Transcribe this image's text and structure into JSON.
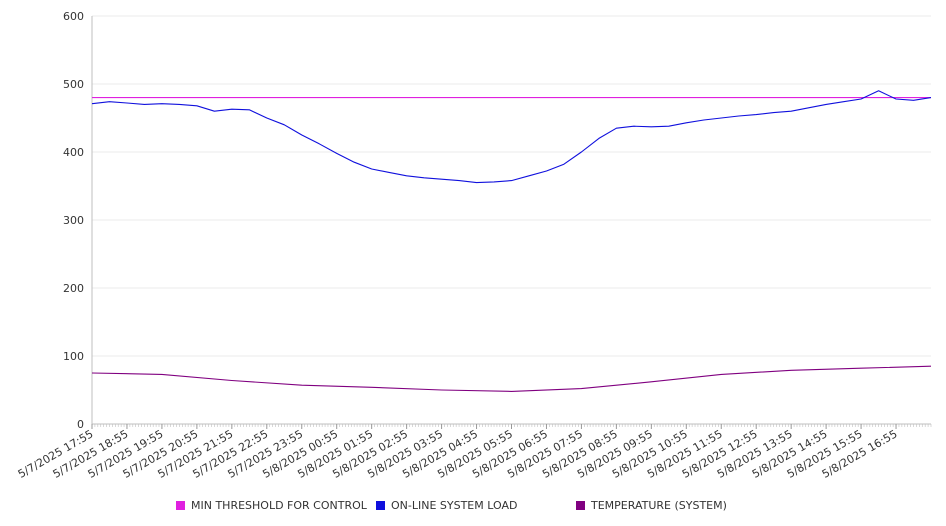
{
  "chart_data": {
    "type": "line",
    "title": "",
    "xlabel": "",
    "ylabel": "",
    "ylim": [
      0,
      600
    ],
    "yticks": [
      0,
      100,
      200,
      300,
      400,
      500,
      600
    ],
    "grid": true,
    "legend_position": "bottom",
    "x_tick_labels": [
      "5/7/2025 17:55",
      "5/7/2025 18:55",
      "5/7/2025 19:55",
      "5/7/2025 20:55",
      "5/7/2025 21:55",
      "5/7/2025 22:55",
      "5/7/2025 23:55",
      "5/8/2025 00:55",
      "5/8/2025 01:55",
      "5/8/2025 02:55",
      "5/8/2025 03:55",
      "5/8/2025 04:55",
      "5/8/2025 05:55",
      "5/8/2025 06:55",
      "5/8/2025 07:55",
      "5/8/2025 08:55",
      "5/8/2025 09:55",
      "5/8/2025 10:55",
      "5/8/2025 11:55",
      "5/8/2025 12:55",
      "5/8/2025 13:55",
      "5/8/2025 14:55",
      "5/8/2025 15:55",
      "5/8/2025 16:55"
    ],
    "series": [
      {
        "name": "MIN THRESHOLD FOR CONTROL",
        "color": "#e020e0",
        "x": [
          "5/7/2025 17:55",
          "5/8/2025 17:55"
        ],
        "values": [
          480,
          480
        ]
      },
      {
        "name": "ON-LINE SYSTEM LOAD",
        "color": "#1010dd",
        "x": [
          "5/7/2025 17:55",
          "5/7/2025 18:25",
          "5/7/2025 18:55",
          "5/7/2025 19:25",
          "5/7/2025 19:55",
          "5/7/2025 20:25",
          "5/7/2025 20:55",
          "5/7/2025 21:25",
          "5/7/2025 21:55",
          "5/7/2025 22:25",
          "5/7/2025 22:55",
          "5/7/2025 23:25",
          "5/7/2025 23:55",
          "5/8/2025 00:25",
          "5/8/2025 00:55",
          "5/8/2025 01:25",
          "5/8/2025 01:55",
          "5/8/2025 02:25",
          "5/8/2025 02:55",
          "5/8/2025 03:25",
          "5/8/2025 03:55",
          "5/8/2025 04:25",
          "5/8/2025 04:55",
          "5/8/2025 05:25",
          "5/8/2025 05:55",
          "5/8/2025 06:25",
          "5/8/2025 06:55",
          "5/8/2025 07:25",
          "5/8/2025 07:55",
          "5/8/2025 08:25",
          "5/8/2025 08:55",
          "5/8/2025 09:25",
          "5/8/2025 09:55",
          "5/8/2025 10:25",
          "5/8/2025 10:55",
          "5/8/2025 11:25",
          "5/8/2025 11:55",
          "5/8/2025 12:25",
          "5/8/2025 12:55",
          "5/8/2025 13:25",
          "5/8/2025 13:55",
          "5/8/2025 14:25",
          "5/8/2025 14:55",
          "5/8/2025 15:25",
          "5/8/2025 15:55",
          "5/8/2025 16:25",
          "5/8/2025 16:55",
          "5/8/2025 17:25",
          "5/8/2025 17:55"
        ],
        "values": [
          471,
          474,
          472,
          470,
          471,
          470,
          468,
          460,
          463,
          462,
          450,
          440,
          425,
          412,
          398,
          385,
          375,
          370,
          365,
          362,
          360,
          358,
          355,
          356,
          358,
          365,
          372,
          382,
          400,
          420,
          435,
          438,
          437,
          438,
          443,
          447,
          450,
          453,
          455,
          458,
          460,
          465,
          470,
          474,
          478,
          490,
          478,
          476,
          480
        ]
      },
      {
        "name": "TEMPERATURE (SYSTEM)",
        "color": "#800080",
        "x": [
          "5/7/2025 17:55",
          "5/7/2025 19:55",
          "5/7/2025 21:55",
          "5/7/2025 23:55",
          "5/8/2025 01:55",
          "5/8/2025 03:55",
          "5/8/2025 05:55",
          "5/8/2025 07:55",
          "5/8/2025 09:55",
          "5/8/2025 11:55",
          "5/8/2025 13:55",
          "5/8/2025 15:55",
          "5/8/2025 17:55"
        ],
        "values": [
          75,
          73,
          64,
          57,
          54,
          50,
          48,
          52,
          62,
          73,
          79,
          82,
          85
        ]
      }
    ]
  }
}
